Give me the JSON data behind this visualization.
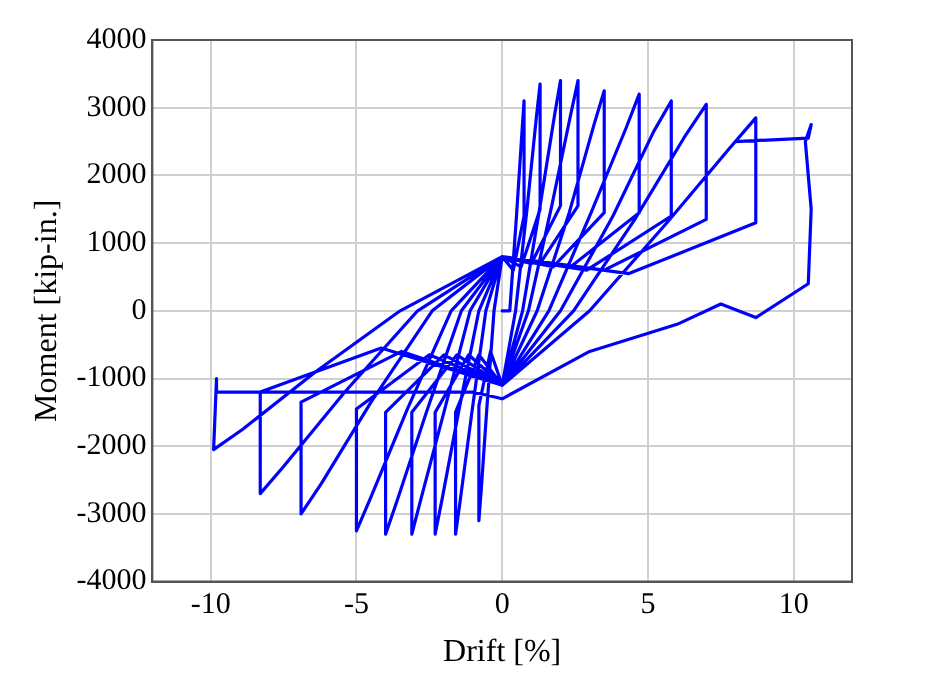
{
  "chart_data": {
    "type": "line",
    "xlabel": "Drift [%]",
    "ylabel": "Moment [kip-in.]",
    "xlim": [
      -12,
      12
    ],
    "xticks": [
      -10,
      -5,
      0,
      5,
      10
    ],
    "ylim": [
      -4000,
      4000
    ],
    "yticks": [
      -4000,
      -3000,
      -2000,
      -1000,
      0,
      1000,
      2000,
      3000,
      4000
    ],
    "grid": true,
    "legend": false,
    "marker": "none",
    "line_style": "solid",
    "series": [
      {
        "color": "#0000ff",
        "x": [
          0,
          0.26,
          0.49,
          0.68,
          0.75,
          0.75,
          0.38,
          0,
          -0.28,
          -0.52,
          -0.72,
          -0.8,
          -0.8,
          -0.4,
          0,
          0.46,
          0.85,
          1.17,
          1.3,
          1.3,
          0.65,
          0,
          -0.56,
          -1.04,
          -1.44,
          -1.6,
          -1.6,
          -0.8,
          0,
          0.7,
          1.3,
          1.8,
          2,
          2,
          1,
          0,
          -0.8,
          -1.5,
          -2.07,
          -2.3,
          -2.3,
          -1.15,
          0,
          0.9,
          1.7,
          2.35,
          2.6,
          2.6,
          1.3,
          0,
          -1.1,
          -2,
          -2.8,
          -3.1,
          -3.1,
          -1.55,
          0,
          1.2,
          2.3,
          3.15,
          3.5,
          3.5,
          1.75,
          0,
          -1.4,
          -2.6,
          -3.6,
          -4,
          -4,
          -2,
          0,
          1.6,
          3.05,
          4.25,
          4.7,
          4.7,
          2.35,
          0,
          -1.75,
          -3.25,
          -4.5,
          -5,
          -5,
          -2.5,
          0,
          2,
          3.8,
          5.2,
          5.8,
          5.8,
          2.9,
          0,
          -2.4,
          -4.5,
          -6.2,
          -6.9,
          -6.9,
          -3.45,
          0,
          2.45,
          4.55,
          6.3,
          7,
          7,
          3.5,
          0,
          -2.9,
          -5.4,
          -7.5,
          -8.3,
          -8.3,
          -4.15,
          0,
          3,
          5.65,
          7.8,
          8.7,
          8.7,
          4.35,
          0,
          -3.5,
          -6.4,
          -8.9,
          -9.9,
          -9.8,
          -9.8,
          -1,
          0,
          3,
          6,
          7.5,
          8.7,
          10.5,
          10.6,
          10.4,
          10.6,
          10.5,
          8
        ],
        "values": [
          0,
          0,
          1400,
          2650,
          3100,
          1400,
          600,
          800,
          0,
          -1400,
          -2650,
          -3100,
          -1400,
          -600,
          -1100,
          0,
          1500,
          2850,
          3350,
          1500,
          650,
          800,
          0,
          -1500,
          -2800,
          -3300,
          -1500,
          -650,
          -1100,
          0,
          1550,
          2900,
          3400,
          1550,
          700,
          800,
          0,
          -1500,
          -2800,
          -3300,
          -1500,
          -650,
          -1100,
          0,
          1550,
          2900,
          3400,
          1550,
          700,
          800,
          0,
          -1500,
          -2800,
          -3300,
          -1500,
          -650,
          -1100,
          0,
          1450,
          2750,
          3250,
          1450,
          650,
          800,
          0,
          -1500,
          -2800,
          -3300,
          -1500,
          -650,
          -1100,
          0,
          1450,
          2700,
          3200,
          1450,
          650,
          800,
          0,
          -1450,
          -2750,
          -3250,
          -1450,
          -650,
          -1100,
          0,
          1400,
          2650,
          3100,
          1400,
          600,
          800,
          0,
          -1350,
          -2550,
          -3000,
          -1350,
          -600,
          -1100,
          0,
          1350,
          2600,
          3050,
          1350,
          600,
          800,
          0,
          -1200,
          -2300,
          -2700,
          -1200,
          -550,
          -1100,
          0,
          1300,
          2400,
          2850,
          1300,
          550,
          800,
          0,
          -900,
          -1750,
          -2050,
          -1000,
          -1200,
          -1200,
          -1300,
          -600,
          -200,
          100,
          -100,
          400,
          1500,
          2500,
          2750,
          2550,
          2500
        ]
      }
    ]
  }
}
